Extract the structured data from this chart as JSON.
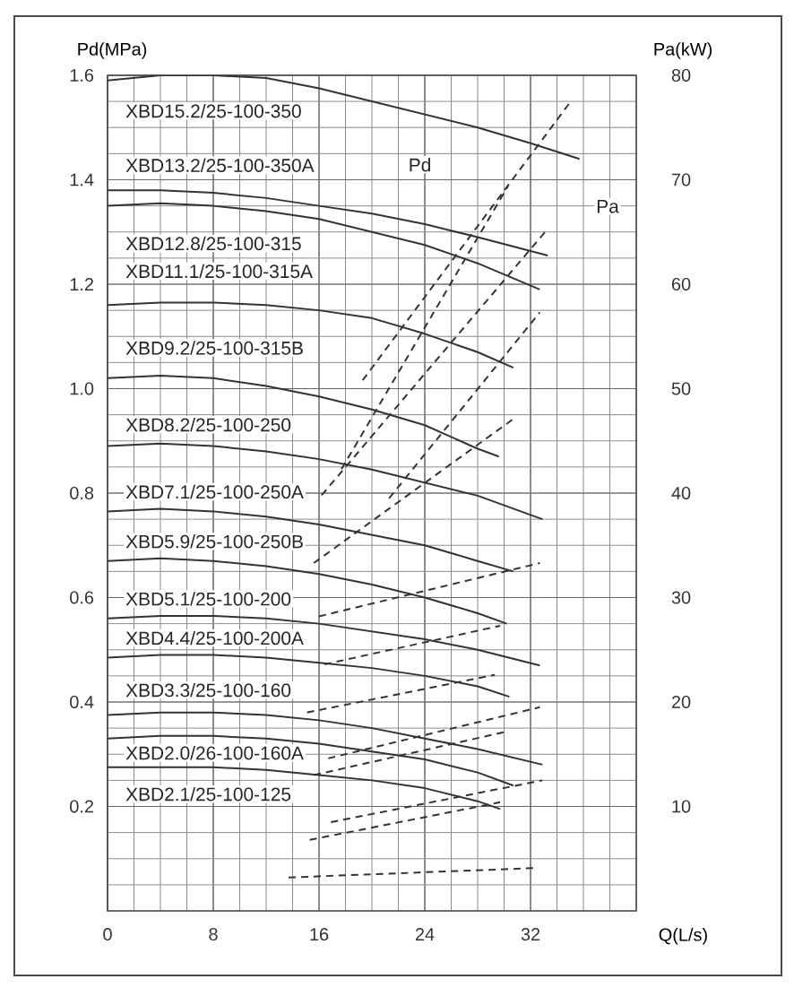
{
  "chart_data": {
    "type": "line",
    "xlabel": "Q(L/s)",
    "ylabel": "Pd(MPa)",
    "y2label": "Pa(kW)",
    "xlim": [
      0,
      40
    ],
    "xticks": [
      0,
      8,
      16,
      24,
      32
    ],
    "ylim": [
      0,
      1.6
    ],
    "yticks": [
      0.2,
      0.4,
      0.6,
      0.8,
      {
        "value": 1.0,
        "label": "1.0"
      },
      1.2,
      1.4,
      1.6
    ],
    "y2lim": [
      0,
      80
    ],
    "y2ticks": [
      10,
      20,
      30,
      40,
      50,
      60,
      70,
      80
    ],
    "grid": true,
    "series": [
      {
        "name": "XBD15.2/25-100-350",
        "color": "#333333",
        "line_style": "solid",
        "x": [
          0,
          4,
          8,
          12,
          16,
          20,
          24,
          28,
          32,
          35.7
        ],
        "values": [
          1.59,
          1.6,
          1.6,
          1.595,
          1.575,
          1.55,
          1.525,
          1.5,
          1.47,
          1.44
        ]
      },
      {
        "name": "XBD13.2/25-100-350A",
        "color": "#333333",
        "line_style": "solid",
        "x": [
          0,
          4,
          8,
          12,
          16,
          20,
          24,
          28,
          33.3
        ],
        "values": [
          1.38,
          1.38,
          1.375,
          1.365,
          1.35,
          1.335,
          1.315,
          1.29,
          1.255
        ]
      },
      {
        "name": "XBD12.8/25-100-315",
        "color": "#333333",
        "line_style": "solid",
        "x": [
          0,
          4,
          8,
          12,
          16,
          20,
          24,
          28,
          32.7
        ],
        "values": [
          1.35,
          1.355,
          1.35,
          1.34,
          1.325,
          1.3,
          1.275,
          1.24,
          1.19
        ]
      },
      {
        "name": "XBD11.1/25-100-315A",
        "color": "#333333",
        "line_style": "solid",
        "x": [
          0,
          4,
          8,
          12,
          16,
          20,
          24,
          28,
          30.7
        ],
        "values": [
          1.16,
          1.165,
          1.165,
          1.16,
          1.15,
          1.135,
          1.105,
          1.07,
          1.04
        ]
      },
      {
        "name": "XBD9.2/25-100-315B",
        "color": "#333333",
        "line_style": "solid",
        "x": [
          0,
          4,
          8,
          12,
          16,
          20,
          24,
          28,
          29.6
        ],
        "values": [
          1.02,
          1.025,
          1.02,
          1.005,
          0.985,
          0.96,
          0.93,
          0.885,
          0.87
        ]
      },
      {
        "name": "XBD8.2/25-100-250",
        "color": "#333333",
        "line_style": "solid",
        "x": [
          0,
          4,
          8,
          12,
          16,
          20,
          24,
          28,
          32.9
        ],
        "values": [
          0.89,
          0.895,
          0.89,
          0.88,
          0.865,
          0.845,
          0.82,
          0.795,
          0.75
        ]
      },
      {
        "name": "XBD7.1/25-100-250A",
        "color": "#333333",
        "line_style": "solid",
        "x": [
          0,
          4,
          8,
          12,
          16,
          20,
          24,
          28,
          30.7
        ],
        "values": [
          0.765,
          0.77,
          0.765,
          0.755,
          0.74,
          0.72,
          0.7,
          0.67,
          0.65
        ]
      },
      {
        "name": "XBD5.9/25-100-250B",
        "color": "#333333",
        "line_style": "solid",
        "x": [
          0,
          4,
          8,
          12,
          16,
          20,
          24,
          28,
          30.2
        ],
        "values": [
          0.67,
          0.675,
          0.67,
          0.66,
          0.645,
          0.625,
          0.6,
          0.57,
          0.55
        ]
      },
      {
        "name": "XBD5.1/25-100-200",
        "color": "#333333",
        "line_style": "solid",
        "x": [
          0,
          4,
          8,
          12,
          16,
          20,
          24,
          28,
          32.7
        ],
        "values": [
          0.56,
          0.565,
          0.565,
          0.56,
          0.55,
          0.535,
          0.52,
          0.5,
          0.47
        ]
      },
      {
        "name": "XBD4.4/25-100-200A",
        "color": "#333333",
        "line_style": "solid",
        "x": [
          0,
          4,
          8,
          12,
          16,
          20,
          24,
          28,
          30.4
        ],
        "values": [
          0.485,
          0.49,
          0.49,
          0.485,
          0.475,
          0.465,
          0.45,
          0.43,
          0.41
        ]
      },
      {
        "name": "XBD3.3/25-100-160",
        "color": "#333333",
        "line_style": "solid",
        "x": [
          0,
          4,
          8,
          12,
          16,
          20,
          24,
          28,
          32.9
        ],
        "values": [
          0.375,
          0.38,
          0.38,
          0.375,
          0.365,
          0.35,
          0.33,
          0.31,
          0.28
        ]
      },
      {
        "name": "XBD2.0/26-100-160A",
        "color": "#333333",
        "line_style": "solid",
        "x": [
          0,
          4,
          8,
          12,
          16,
          20,
          24,
          28,
          30.7
        ],
        "values": [
          0.33,
          0.335,
          0.335,
          0.33,
          0.32,
          0.305,
          0.29,
          0.265,
          0.24
        ]
      },
      {
        "name": "XBD2.1/25-100-125",
        "color": "#333333",
        "line_style": "solid",
        "x": [
          0,
          4,
          8,
          12,
          16,
          20,
          24,
          28,
          29.7
        ],
        "values": [
          0.275,
          0.275,
          0.275,
          0.27,
          0.26,
          0.25,
          0.235,
          0.21,
          0.195
        ]
      },
      {
        "color": "#333333",
        "line_style": "dashed",
        "axis": "y2",
        "x": [
          19.3,
          35.1
        ],
        "values": [
          50.8,
          77.6
        ]
      },
      {
        "color": "#333333",
        "line_style": "dashed",
        "axis": "y2",
        "x": [
          17.7,
          30.3
        ],
        "values": [
          42.3,
          69.4
        ]
      },
      {
        "color": "#333333",
        "line_style": "dashed",
        "axis": "y2",
        "x": [
          16.2,
          33.1
        ],
        "values": [
          39.8,
          65.0
        ]
      },
      {
        "color": "#333333",
        "line_style": "dashed",
        "axis": "y2",
        "x": [
          21.3,
          32.7
        ],
        "values": [
          39.5,
          57.3
        ]
      },
      {
        "color": "#333333",
        "line_style": "dashed",
        "axis": "y2",
        "x": [
          15.6,
          30.7
        ],
        "values": [
          33.3,
          47.1
        ]
      },
      {
        "color": "#333333",
        "line_style": "dashed",
        "axis": "y2",
        "x": [
          16,
          32.7
        ],
        "values": [
          28.2,
          33.3
        ]
      },
      {
        "color": "#333333",
        "line_style": "dashed",
        "axis": "y2",
        "x": [
          16.4,
          29.7
        ],
        "values": [
          23.6,
          27.3
        ]
      },
      {
        "color": "#333333",
        "line_style": "dashed",
        "axis": "y2",
        "x": [
          15.1,
          29.3
        ],
        "values": [
          19.0,
          22.6
        ]
      },
      {
        "color": "#333333",
        "line_style": "dashed",
        "axis": "y2",
        "x": [
          16.7,
          32.7
        ],
        "values": [
          14.6,
          19.5
        ]
      },
      {
        "color": "#333333",
        "line_style": "dashed",
        "axis": "y2",
        "x": [
          15.6,
          30.3
        ],
        "values": [
          13.0,
          17.2
        ]
      },
      {
        "color": "#333333",
        "line_style": "dashed",
        "axis": "y2",
        "x": [
          16.9,
          32.9
        ],
        "values": [
          8.5,
          12.5
        ]
      },
      {
        "color": "#333333",
        "line_style": "dashed",
        "axis": "y2",
        "x": [
          15.3,
          29.7
        ],
        "values": [
          6.8,
          10.4
        ]
      },
      {
        "color": "#333333",
        "line_style": "dashed",
        "axis": "y2",
        "x": [
          13.7,
          32.3
        ],
        "values": [
          3.2,
          4.1
        ]
      }
    ],
    "annotations": [
      "Pd",
      "Pa"
    ]
  }
}
